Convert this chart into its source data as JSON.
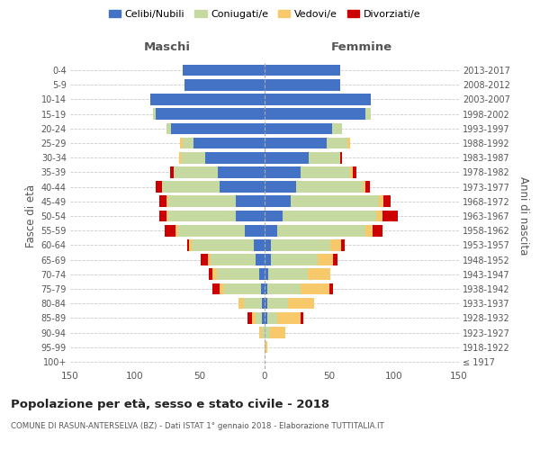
{
  "age_groups": [
    "100+",
    "95-99",
    "90-94",
    "85-89",
    "80-84",
    "75-79",
    "70-74",
    "65-69",
    "60-64",
    "55-59",
    "50-54",
    "45-49",
    "40-44",
    "35-39",
    "30-34",
    "25-29",
    "20-24",
    "15-19",
    "10-14",
    "5-9",
    "0-4"
  ],
  "birth_years": [
    "≤ 1917",
    "1918-1922",
    "1923-1927",
    "1928-1932",
    "1933-1937",
    "1938-1942",
    "1943-1947",
    "1948-1952",
    "1953-1957",
    "1958-1962",
    "1963-1967",
    "1968-1972",
    "1973-1977",
    "1978-1982",
    "1983-1987",
    "1988-1992",
    "1993-1997",
    "1998-2002",
    "2003-2007",
    "2008-2012",
    "2013-2017"
  ],
  "colors": {
    "celibe": "#4472c4",
    "coniugato": "#c5d9a0",
    "vedovo": "#f8c96a",
    "divorziato": "#cc0000"
  },
  "maschi": {
    "celibe": [
      0,
      0,
      0,
      2,
      2,
      3,
      4,
      7,
      8,
      15,
      22,
      22,
      35,
      36,
      46,
      55,
      72,
      84,
      88,
      62,
      63
    ],
    "coniugato": [
      0,
      0,
      2,
      5,
      14,
      28,
      33,
      35,
      48,
      52,
      52,
      52,
      44,
      34,
      18,
      8,
      4,
      2,
      0,
      0,
      0
    ],
    "vedovo": [
      0,
      0,
      2,
      3,
      4,
      4,
      3,
      2,
      2,
      2,
      2,
      2,
      0,
      0,
      2,
      2,
      0,
      0,
      0,
      0,
      0
    ],
    "divorziato": [
      0,
      0,
      0,
      3,
      0,
      5,
      3,
      5,
      2,
      8,
      5,
      5,
      5,
      3,
      0,
      0,
      0,
      0,
      0,
      0,
      0
    ]
  },
  "femmine": {
    "celibe": [
      0,
      0,
      0,
      2,
      2,
      2,
      3,
      5,
      5,
      10,
      14,
      20,
      24,
      28,
      34,
      48,
      52,
      78,
      82,
      58,
      58
    ],
    "coniugato": [
      0,
      0,
      4,
      8,
      16,
      26,
      30,
      36,
      46,
      68,
      72,
      68,
      52,
      38,
      24,
      16,
      8,
      4,
      0,
      0,
      0
    ],
    "vedovo": [
      0,
      2,
      12,
      18,
      20,
      22,
      18,
      12,
      8,
      5,
      5,
      4,
      2,
      2,
      0,
      2,
      0,
      0,
      0,
      0,
      0
    ],
    "divorziato": [
      0,
      0,
      0,
      2,
      0,
      3,
      0,
      3,
      3,
      8,
      12,
      5,
      3,
      3,
      2,
      0,
      0,
      0,
      0,
      0,
      0
    ]
  },
  "xlim": 150,
  "title": "Popolazione per età, sesso e stato civile - 2018",
  "subtitle": "COMUNE DI RASUN-ANTERSELVA (BZ) - Dati ISTAT 1° gennaio 2018 - Elaborazione TUTTITALIA.IT",
  "ylabel_left": "Fasce di età",
  "ylabel_right": "Anni di nascita",
  "xlabel_maschi": "Maschi",
  "xlabel_femmine": "Femmine",
  "legend_labels": [
    "Celibi/Nubili",
    "Coniugati/e",
    "Vedovi/e",
    "Divorziati/e"
  ],
  "background_color": "#ffffff"
}
